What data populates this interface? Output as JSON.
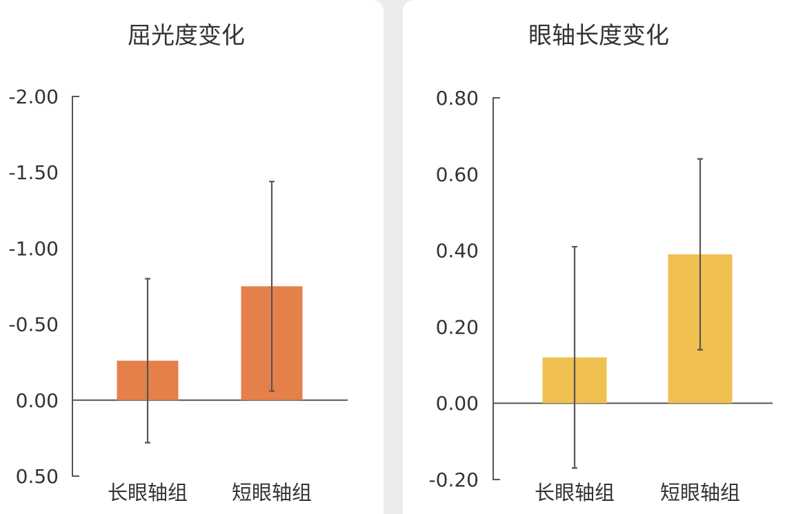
{
  "chart_data": [
    {
      "type": "bar",
      "title": "屈光度变化",
      "categories": [
        "长眼轴组",
        "短眼轴组"
      ],
      "values": [
        -0.26,
        -0.75
      ],
      "error_high": [
        -0.8,
        -1.44
      ],
      "error_low": [
        0.28,
        -0.06
      ],
      "ylim": [
        0.5,
        -2.0
      ],
      "y_inverted": true,
      "yticks": [
        0.5,
        0.0,
        -0.5,
        -1.0,
        -1.5,
        -2.0
      ],
      "ytick_labels": [
        "0.50",
        "0.00",
        "-0.50",
        "-1.00",
        "-1.50",
        "-2.00"
      ],
      "color": "#e5804b",
      "grid": false
    },
    {
      "type": "bar",
      "title": "眼轴长度变化",
      "categories": [
        "长眼轴组",
        "短眼轴组"
      ],
      "values": [
        0.12,
        0.39
      ],
      "error_high": [
        0.41,
        0.64
      ],
      "error_low": [
        -0.17,
        0.14
      ],
      "ylim": [
        -0.2,
        0.8
      ],
      "y_inverted": false,
      "yticks": [
        -0.2,
        0.0,
        0.2,
        0.4,
        0.6,
        0.8
      ],
      "ytick_labels": [
        "-0.20",
        "0.00",
        "0.20",
        "0.40",
        "0.60",
        "0.80"
      ],
      "color": "#f0c050",
      "grid": false
    }
  ]
}
